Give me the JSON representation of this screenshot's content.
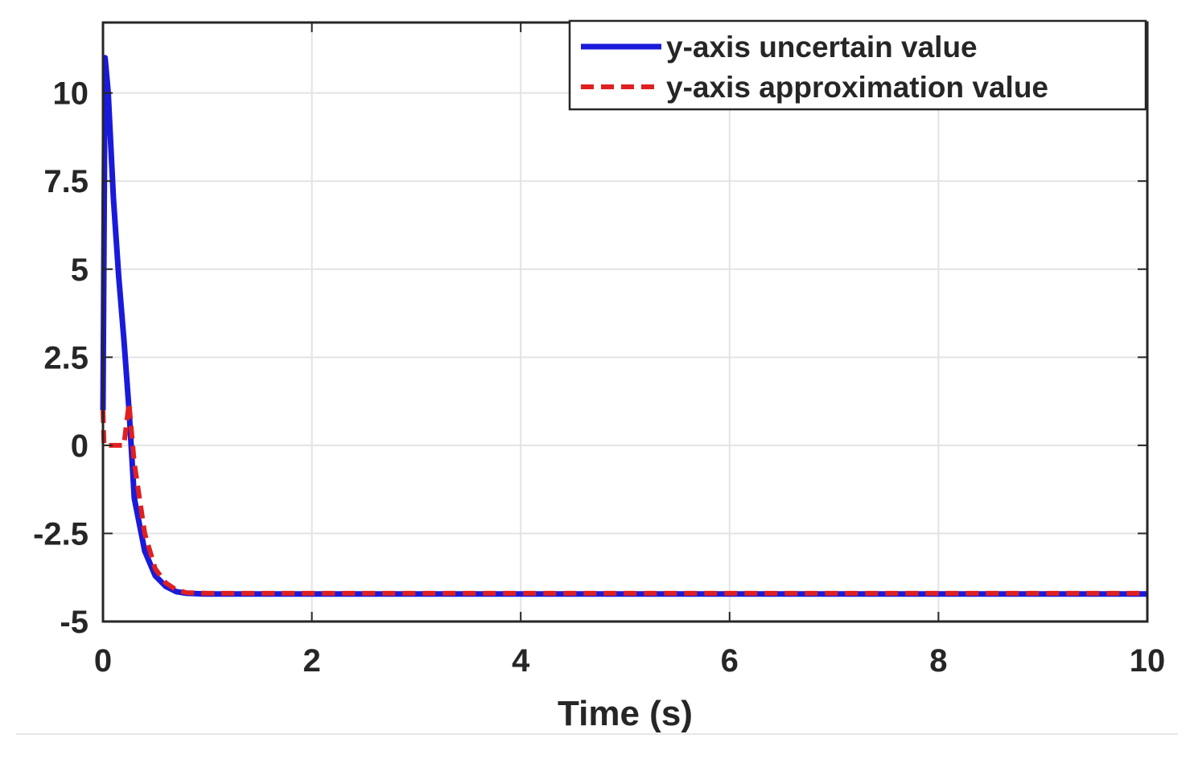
{
  "chart_data": {
    "type": "line",
    "xlabel": "Time (s)",
    "ylabel": "",
    "xlim": [
      0,
      10
    ],
    "ylim": [
      -5,
      12
    ],
    "xticks": [
      0,
      2,
      4,
      6,
      8,
      10
    ],
    "xtick_labels": [
      "0",
      "2",
      "4",
      "6",
      "8",
      "10"
    ],
    "yticks": [
      -5,
      -2.5,
      0,
      2.5,
      5,
      7.5,
      10
    ],
    "ytick_labels": [
      "-5",
      "-2.5",
      "0",
      "2.5",
      "5",
      "7.5",
      "10"
    ],
    "grid": true,
    "legend_position": "top-right",
    "series": [
      {
        "name": "y-axis uncertain value",
        "color": "#1a1adb",
        "style": "solid",
        "x": [
          0,
          0.02,
          0.05,
          0.1,
          0.15,
          0.2,
          0.25,
          0.3,
          0.4,
          0.5,
          0.6,
          0.7,
          0.8,
          1.0,
          1.5,
          2,
          4,
          6,
          8,
          10
        ],
        "y": [
          1.0,
          11.0,
          10.0,
          7.0,
          4.8,
          3.0,
          1.0,
          -1.5,
          -3.0,
          -3.7,
          -4.0,
          -4.15,
          -4.2,
          -4.22,
          -4.22,
          -4.22,
          -4.22,
          -4.22,
          -4.22,
          -4.22
        ]
      },
      {
        "name": "y-axis approximation value",
        "color": "#e02020",
        "style": "dashed",
        "x": [
          0,
          0.01,
          0.02,
          0.05,
          0.1,
          0.15,
          0.2,
          0.22,
          0.25,
          0.3,
          0.4,
          0.5,
          0.6,
          0.7,
          0.8,
          1.0,
          1.5,
          2,
          4,
          6,
          8,
          10
        ],
        "y": [
          1.0,
          0.0,
          0.0,
          0.0,
          0.0,
          0.0,
          0.0,
          0.5,
          1.2,
          -0.5,
          -2.5,
          -3.5,
          -3.9,
          -4.1,
          -4.18,
          -4.2,
          -4.2,
          -4.2,
          -4.2,
          -4.2,
          -4.2,
          -4.2
        ]
      }
    ]
  }
}
